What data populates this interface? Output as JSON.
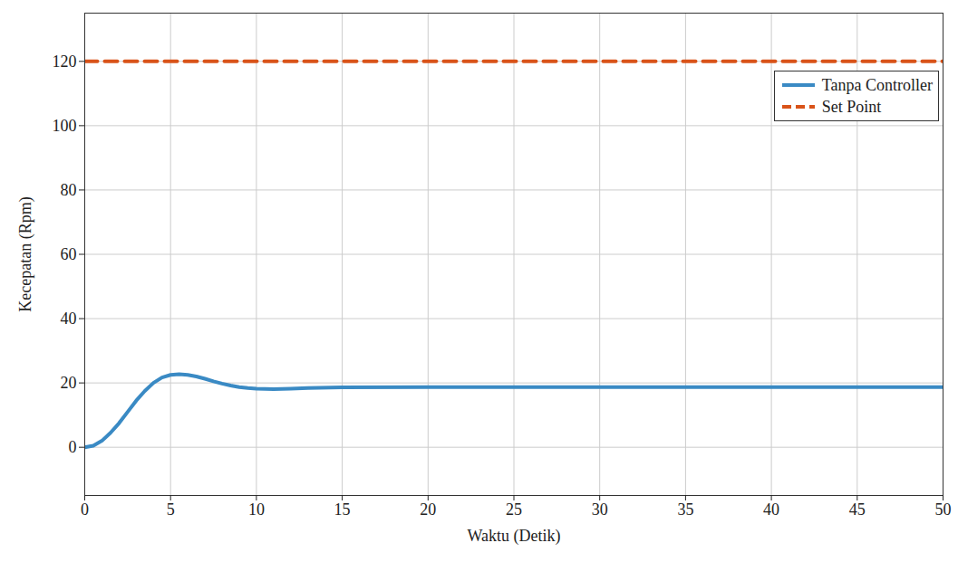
{
  "chart_data": {
    "type": "line",
    "x_label": "Waktu (Detik)",
    "y_label": "Kecepatan (Rpm)",
    "x": [
      0,
      0.5,
      1,
      1.5,
      2,
      2.5,
      3,
      3.5,
      4,
      4.5,
      5,
      5.5,
      6,
      6.5,
      7,
      7.5,
      8,
      8.5,
      9,
      9.5,
      10,
      11,
      12,
      13,
      15,
      20,
      30,
      40,
      50
    ],
    "series": [
      {
        "name": "Tanpa Controller",
        "color": "#3a8ac4",
        "line_style": "solid",
        "values": [
          0,
          0.5,
          2,
          4.5,
          7.5,
          11,
          14.5,
          17.5,
          20,
          21.7,
          22.5,
          22.7,
          22.5,
          22,
          21.3,
          20.5,
          19.8,
          19.2,
          18.7,
          18.4,
          18.2,
          18.1,
          18.2,
          18.4,
          18.6,
          18.7,
          18.7,
          18.7,
          18.7
        ]
      },
      {
        "name": "Set Point",
        "color": "#d95319",
        "line_style": "dashed",
        "values": [
          120,
          120,
          120,
          120,
          120,
          120,
          120,
          120,
          120,
          120,
          120,
          120,
          120,
          120,
          120,
          120,
          120,
          120,
          120,
          120,
          120,
          120,
          120,
          120,
          120,
          120,
          120,
          120,
          120
        ]
      }
    ],
    "xlim": [
      0,
      50
    ],
    "xticks": [
      0,
      5,
      10,
      15,
      20,
      25,
      30,
      35,
      40,
      45,
      50
    ],
    "ylim": [
      -15,
      135
    ],
    "yticks": [
      0,
      20,
      40,
      60,
      80,
      100,
      120
    ],
    "grid": true,
    "legend": "top-right"
  }
}
